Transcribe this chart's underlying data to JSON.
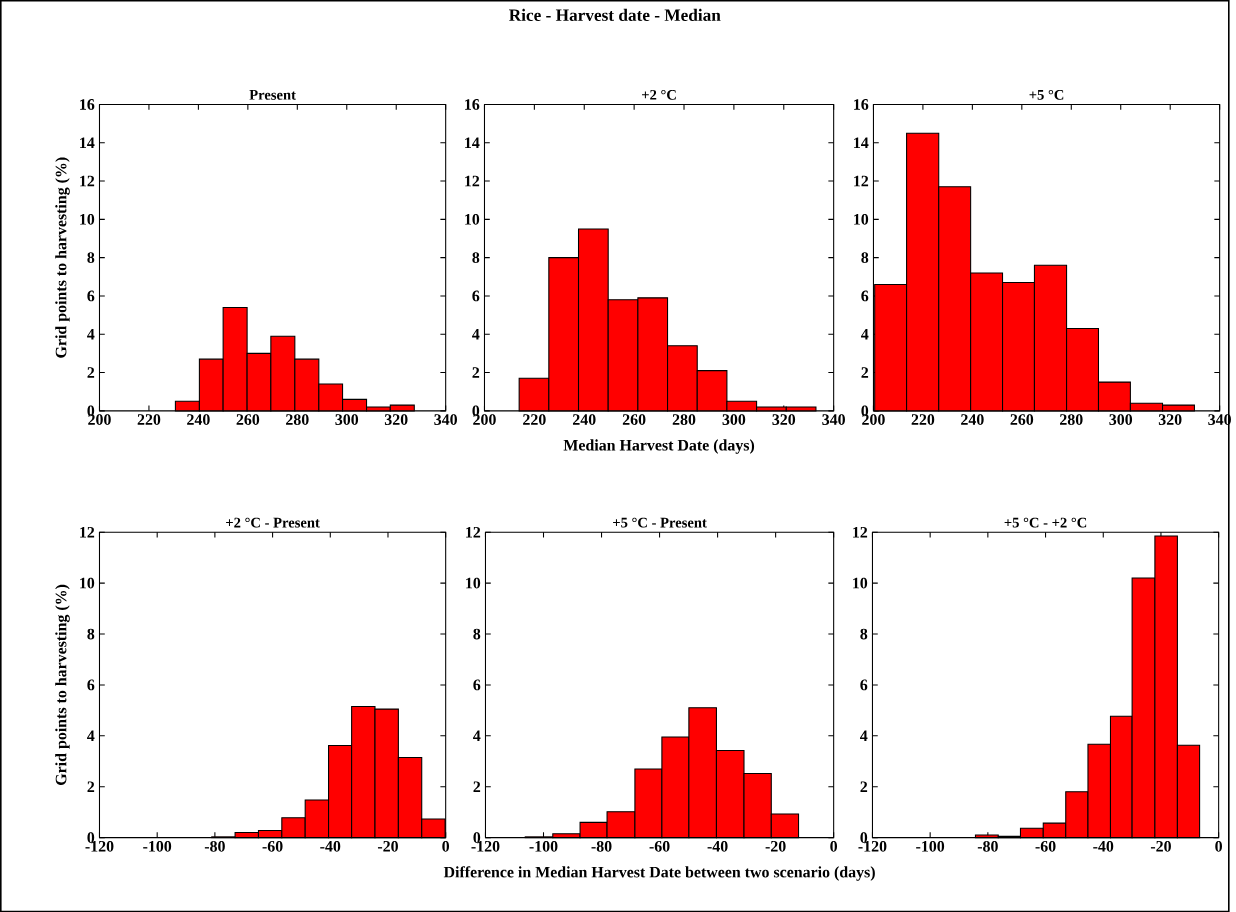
{
  "chart_data": [
    {
      "type": "histogram",
      "title": "Present",
      "ylabel": "Grid points to harvesting (%)",
      "annotations": [
        "Rice - Harvest date - Median"
      ],
      "color": "#ff0000",
      "bins": [
        230.7,
        240.4,
        250.0,
        259.7,
        269.3,
        279.0,
        288.7,
        298.3,
        308.0,
        317.6,
        327.3
      ],
      "values": [
        0.5,
        2.7,
        5.4,
        3.0,
        3.9,
        2.7,
        1.4,
        0.6,
        0.2,
        0.3
      ],
      "xlim": [
        200,
        340
      ],
      "xticks": [
        200,
        220,
        240,
        260,
        280,
        300,
        320,
        340
      ],
      "ylim": [
        0,
        16
      ],
      "yticks": [
        0,
        2,
        4,
        6,
        8,
        10,
        12,
        14,
        16
      ]
    },
    {
      "type": "histogram",
      "title": "+2 °C",
      "xlabel": "Median Harvest Date (days)",
      "color": "#ff0000",
      "bins": [
        213.9,
        225.8,
        237.7,
        249.6,
        261.5,
        273.4,
        285.3,
        297.2,
        309.1,
        321.0,
        332.9
      ],
      "values": [
        1.7,
        8.0,
        9.5,
        5.8,
        5.9,
        3.4,
        2.1,
        0.5,
        0.2,
        0.2
      ],
      "xlim": [
        200,
        340
      ],
      "xticks": [
        200,
        220,
        240,
        260,
        280,
        300,
        320,
        340
      ],
      "ylim": [
        0,
        16
      ],
      "yticks": [
        0,
        2,
        4,
        6,
        8,
        10,
        12,
        14,
        16
      ]
    },
    {
      "type": "histogram",
      "title": "+5 °C",
      "color": "#ff0000",
      "bins": [
        200.5,
        213.4,
        226.4,
        239.3,
        252.2,
        265.1,
        278.1,
        291.0,
        303.9,
        316.9,
        329.8
      ],
      "values": [
        6.6,
        14.5,
        11.7,
        7.2,
        6.7,
        7.6,
        4.3,
        1.5,
        0.4,
        0.3
      ],
      "xlim": [
        200,
        340
      ],
      "xticks": [
        200,
        220,
        240,
        260,
        280,
        300,
        320,
        340
      ],
      "ylim": [
        0,
        16
      ],
      "yticks": [
        0,
        2,
        4,
        6,
        8,
        10,
        12,
        14,
        16
      ]
    },
    {
      "type": "histogram",
      "title": "+2 °C - Present",
      "ylabel": "Grid points to harvesting (%)",
      "color": "#ff0000",
      "bins": [
        -81.1,
        -73.0,
        -64.9,
        -56.8,
        -48.7,
        -40.6,
        -32.6,
        -24.5,
        -16.4,
        -8.3,
        -0.2
      ],
      "values": [
        0.03,
        0.2,
        0.28,
        0.78,
        1.48,
        3.62,
        5.15,
        5.05,
        3.15,
        0.73
      ],
      "xlim": [
        -120,
        0
      ],
      "xticks": [
        -120,
        -100,
        -80,
        -60,
        -40,
        -20,
        0
      ],
      "ylim": [
        0,
        12
      ],
      "yticks": [
        0,
        2,
        4,
        6,
        8,
        10,
        12
      ]
    },
    {
      "type": "histogram",
      "title": "+5 °C - Present",
      "xlabel": "Difference in Median Harvest Date between two scenario (days)",
      "color": "#ff0000",
      "bins": [
        -106.3,
        -96.8,
        -87.4,
        -78.1,
        -68.5,
        -59.2,
        -49.9,
        -40.4,
        -30.9,
        -21.5,
        -12.1
      ],
      "values": [
        0.03,
        0.15,
        0.6,
        1.02,
        2.7,
        3.95,
        5.1,
        3.42,
        2.52,
        0.93
      ],
      "xlim": [
        -120,
        0
      ],
      "xticks": [
        -120,
        -100,
        -80,
        -60,
        -40,
        -20,
        0
      ],
      "ylim": [
        0,
        12
      ],
      "yticks": [
        0,
        2,
        4,
        6,
        8,
        10,
        12
      ]
    },
    {
      "type": "histogram",
      "title": "+5 °C - +2 °C",
      "color": "#ff0000",
      "bins": [
        -84.3,
        -76.4,
        -68.7,
        -60.8,
        -53.0,
        -45.3,
        -37.5,
        -30.0,
        -22.1,
        -14.3,
        -6.6
      ],
      "values": [
        0.1,
        0.05,
        0.37,
        0.57,
        1.8,
        3.67,
        4.77,
        10.2,
        11.85,
        3.63
      ],
      "xlim": [
        -120,
        0
      ],
      "xticks": [
        -120,
        -100,
        -80,
        -60,
        -40,
        -20,
        0
      ],
      "ylim": [
        0,
        12
      ],
      "yticks": [
        0,
        2,
        4,
        6,
        8,
        10,
        12
      ]
    }
  ]
}
